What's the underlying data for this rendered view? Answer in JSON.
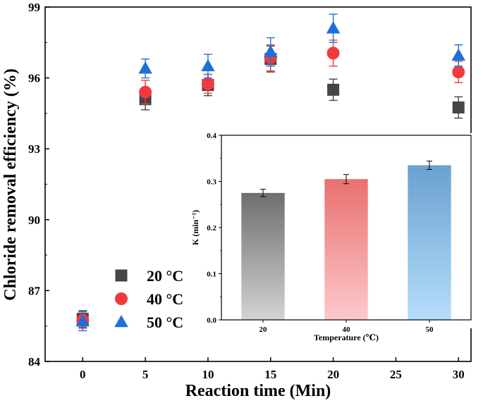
{
  "chart_data": [
    {
      "type": "scatter",
      "title": "",
      "xlabel": "Reaction time (Min)",
      "ylabel": "Chloride removal efficiency (%)",
      "xlim": [
        -3,
        31
      ],
      "ylim": [
        84,
        99
      ],
      "xticks": [
        0,
        5,
        10,
        15,
        20,
        25,
        30
      ],
      "yticks": [
        84,
        87,
        90,
        93,
        96,
        99
      ],
      "xtick_labels": [
        "0",
        "5",
        "10",
        "15",
        "20",
        "25",
        "30"
      ],
      "ytick_labels": [
        "84",
        "87",
        "90",
        "93",
        "96",
        "99"
      ],
      "grid": false,
      "legend_position": "bottom-left",
      "series": [
        {
          "name": "20 °C",
          "marker": "square",
          "color": "#454545",
          "x": [
            0,
            5,
            10,
            15,
            20,
            30
          ],
          "y": [
            85.8,
            95.1,
            95.7,
            96.8,
            95.5,
            94.75
          ],
          "error": [
            0.35,
            0.45,
            0.45,
            0.55,
            0.45,
            0.45
          ]
        },
        {
          "name": "40 °C",
          "marker": "circle",
          "color": "#f2393d",
          "x": [
            0,
            5,
            10,
            15,
            20,
            30
          ],
          "y": [
            85.75,
            95.4,
            95.75,
            96.85,
            97.05,
            96.25
          ],
          "error": [
            0.35,
            0.5,
            0.4,
            0.55,
            0.55,
            0.45
          ]
        },
        {
          "name": "50 °C",
          "marker": "triangle",
          "color": "#1f6fdb",
          "x": [
            0,
            5,
            10,
            15,
            20,
            30
          ],
          "y": [
            85.7,
            96.4,
            96.5,
            97.1,
            98.1,
            96.95
          ],
          "error": [
            0.4,
            0.4,
            0.5,
            0.6,
            0.6,
            0.45
          ]
        }
      ]
    },
    {
      "type": "bar",
      "title": "",
      "xlabel": "Temperature (℃)",
      "ylabel": "K (min⁻¹)",
      "ylim": [
        0,
        0.4
      ],
      "yticks": [
        0.0,
        0.1,
        0.2,
        0.3,
        0.4
      ],
      "ytick_labels": [
        "0.0",
        "0.1",
        "0.2",
        "0.3",
        "0.4"
      ],
      "categories": [
        "20",
        "40",
        "50"
      ],
      "values": [
        0.275,
        0.305,
        0.335
      ],
      "errors": [
        0.008,
        0.01,
        0.009
      ],
      "bar_colors_top": [
        "#6e6e6e",
        "#e97070",
        "#6aa1cf"
      ],
      "bar_colors_bottom": [
        "#d3d3d3",
        "#fdc9cb",
        "#b5defa"
      ],
      "grid": false
    }
  ]
}
